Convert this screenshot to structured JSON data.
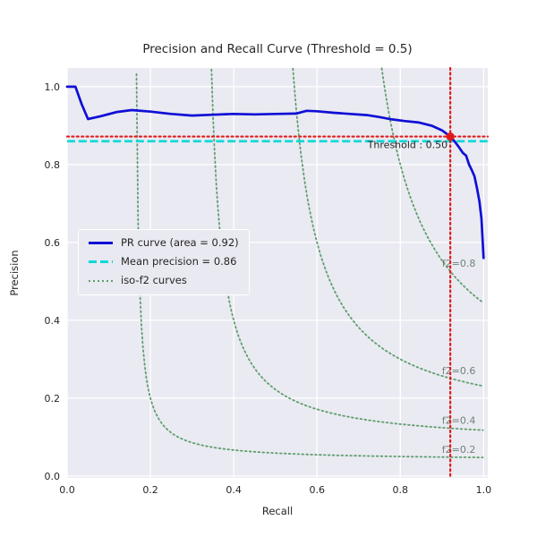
{
  "colors": {
    "figure_bg": "#ffffff",
    "axes_bg": "#eaeaf2",
    "grid": "#ffffff",
    "pr_curve": "#0f0fd6",
    "mean_precision": "#00d8d8",
    "iso_f2": "#5f9e6e",
    "threshold": "#e01a1a",
    "text": "#262626",
    "iso_label_text": "#6e8377"
  },
  "legend": {
    "items": [
      {
        "label": "PR curve (area = 0.92)",
        "style": "solid",
        "color": "#0f0fd6"
      },
      {
        "label": "Mean precision = 0.86",
        "style": "dashed",
        "color": "#00d8d8"
      },
      {
        "label": "iso-f2 curves",
        "style": "dotted",
        "color": "#5f9e6e"
      }
    ]
  },
  "chart_data": {
    "type": "line",
    "title": "Precision and Recall Curve (Threshold = 0.5)",
    "xlabel": "Recall",
    "ylabel": "Precision",
    "xlim": [
      0.0,
      1.01
    ],
    "ylim": [
      -0.005,
      1.048
    ],
    "grid": true,
    "x_ticks": [
      0.0,
      0.2,
      0.4,
      0.6,
      0.8,
      1.0
    ],
    "y_ticks": [
      0.0,
      0.2,
      0.4,
      0.6,
      0.8,
      1.0
    ],
    "pr_curve": {
      "name": "PR curve",
      "area": 0.92,
      "recall": [
        0.0,
        0.02,
        0.035,
        0.05,
        0.08,
        0.12,
        0.155,
        0.2,
        0.25,
        0.3,
        0.35,
        0.4,
        0.45,
        0.5,
        0.55,
        0.575,
        0.6,
        0.64,
        0.68,
        0.72,
        0.75,
        0.78,
        0.81,
        0.845,
        0.875,
        0.9,
        0.92,
        0.93,
        0.94,
        0.95,
        0.958,
        0.965,
        0.972,
        0.978,
        0.984,
        0.99,
        0.995,
        1.0
      ],
      "precision": [
        1.0,
        1.0,
        0.955,
        0.917,
        0.924,
        0.935,
        0.94,
        0.936,
        0.93,
        0.926,
        0.928,
        0.93,
        0.929,
        0.93,
        0.931,
        0.938,
        0.937,
        0.933,
        0.93,
        0.927,
        0.922,
        0.916,
        0.912,
        0.908,
        0.9,
        0.888,
        0.872,
        0.86,
        0.846,
        0.83,
        0.823,
        0.8,
        0.785,
        0.77,
        0.74,
        0.705,
        0.66,
        0.56
      ]
    },
    "mean_precision": 0.86,
    "threshold": {
      "value": 0.5,
      "recall": 0.92,
      "precision": 0.872,
      "label": "Threshold : 0.50"
    },
    "iso_f2": {
      "f2_values": [
        0.2,
        0.4,
        0.6,
        0.8
      ],
      "labels": [
        "f2=0.2",
        "f2=0.4",
        "f2=0.6",
        "f2=0.8"
      ],
      "formula": "precision = f2*recall / (5*recall - 4*f2)",
      "label_x": 0.9
    }
  }
}
